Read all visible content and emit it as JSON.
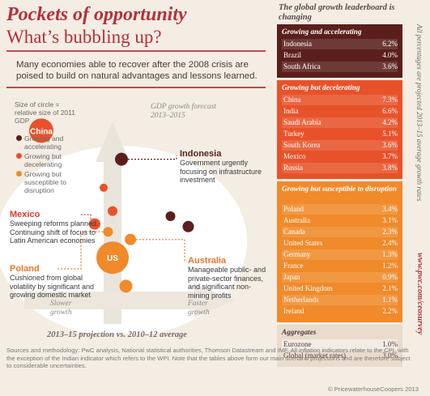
{
  "header": {
    "title_main": "Pockets of opportunity",
    "title_sub": "What’s bubbling up?",
    "intro": "Many economies able to recover after the 2008 crisis are poised to build on natural advantages and lessons learned."
  },
  "legend": {
    "title": "Size of circle = relative size of 2011 GDP",
    "items": [
      {
        "label": "Growing and accelerating",
        "color": "#5a1f1c"
      },
      {
        "label": "Growing but decelerating",
        "color": "#e8522a"
      },
      {
        "label": "Growing but susceptible to disruption",
        "color": "#f08a2a"
      }
    ]
  },
  "chart_data": {
    "type": "scatter",
    "title": "GDP growth forecast 2013–2015",
    "xlabel": "2013–15 projection vs. 2010–12 average",
    "x_axis_labels": {
      "low": "Slower growth",
      "high": "Faster growth"
    },
    "note": "Size of circle = relative size of 2011 GDP",
    "series": [
      {
        "name": "Growing and accelerating",
        "color": "#5a1f1c",
        "points": [
          {
            "label": "Indonesia",
            "x": 0.0,
            "y": 6.2
          },
          {
            "label": "",
            "x": 1.1,
            "y": 4.0
          },
          {
            "label": "",
            "x": 1.5,
            "y": 3.6
          }
        ]
      },
      {
        "name": "Growing but decelerating",
        "color": "#e8522a",
        "points": [
          {
            "label": "China",
            "x": -1.8,
            "y": 7.3
          },
          {
            "label": "Mexico",
            "x": -0.6,
            "y": 3.7
          },
          {
            "label": "",
            "x": -0.4,
            "y": 5.1
          },
          {
            "label": "",
            "x": -0.2,
            "y": 4.2
          }
        ]
      },
      {
        "name": "Growing but susceptible to disruption",
        "color": "#f08a2a",
        "points": [
          {
            "label": "US",
            "x": -0.2,
            "y": 2.4
          },
          {
            "label": "Germany",
            "x": 0.1,
            "y": 1.3
          },
          {
            "label": "Poland",
            "x": -0.3,
            "y": 3.4
          },
          {
            "label": "Australia",
            "x": 0.2,
            "y": 3.1
          }
        ]
      }
    ]
  },
  "annotations": {
    "china": "China",
    "us": "US",
    "indonesia_title": "Indonesia",
    "indonesia_body": "Government urgently focusing on infrastructure investment",
    "mexico_title": "Mexico",
    "mexico_body": "Sweeping reforms planned. Continuing shift of focus to Latin American economies",
    "poland_title": "Poland",
    "poland_body": "Cushioned from global volatility by significant and growing domestic market",
    "australia_title": "Australia",
    "australia_body": "Manageable public- and private-sector finances, and significant non-mining profits"
  },
  "leaderboard": {
    "title": "The global growth leaderboard is changing",
    "vertical_note": "All percentages are projected 2013–15 average growth rates",
    "url": "www.pwc.com/ceosurvey",
    "groups": [
      {
        "header": "Growing and accelerating",
        "color": "#5a1f1c",
        "rows": [
          {
            "name": "Indonesia",
            "value": "6.2%"
          },
          {
            "name": "Brazil",
            "value": "4.0%"
          },
          {
            "name": "South Africa",
            "value": "3.6%"
          }
        ]
      },
      {
        "header": "Growing but decelerating",
        "color": "#e8522a",
        "rows": [
          {
            "name": "China",
            "value": "7.3%"
          },
          {
            "name": "India",
            "value": "6.6%"
          },
          {
            "name": "Saudi Arabia",
            "value": "4.2%"
          },
          {
            "name": "Turkey",
            "value": "5.1%"
          },
          {
            "name": "South Korea",
            "value": "3.6%"
          },
          {
            "name": "Mexico",
            "value": "3.7%"
          },
          {
            "name": "Russia",
            "value": "3.8%"
          }
        ]
      },
      {
        "header": "Growing but susceptible to disruption",
        "color": "#f08a2a",
        "rows": [
          {
            "name": "Poland",
            "value": "3.4%"
          },
          {
            "name": "Australia",
            "value": "3.1%"
          },
          {
            "name": "Canada",
            "value": "2.3%"
          },
          {
            "name": "United States",
            "value": "2.4%"
          },
          {
            "name": "Germany",
            "value": "1.3%"
          },
          {
            "name": "France",
            "value": "1.2%"
          },
          {
            "name": "Japan",
            "value": "0.9%"
          },
          {
            "name": "United Kingdom",
            "value": "2.1%"
          },
          {
            "name": "Netherlands",
            "value": "1.1%"
          },
          {
            "name": "Ireland",
            "value": "2.2%"
          }
        ]
      },
      {
        "header": "Aggregates",
        "color": "#e9dccd",
        "rows": [
          {
            "name": "Eurozone",
            "value": "1.0%"
          },
          {
            "name": "Global (market rates)",
            "value": "3.0%"
          }
        ]
      }
    ]
  },
  "footer": {
    "sources": "Sources and methodology: PwC analysis, National statistical authorities, Thomson Datastream and IMF. All inflation indicators relate to the CPI, with the exception of the Indian indicator which refers to the WPI. Note that the tables above form our main scenario projections and are therefore subject to considerable uncertainties.",
    "copyright": "© PricewaterhouseCoopers 2013"
  }
}
